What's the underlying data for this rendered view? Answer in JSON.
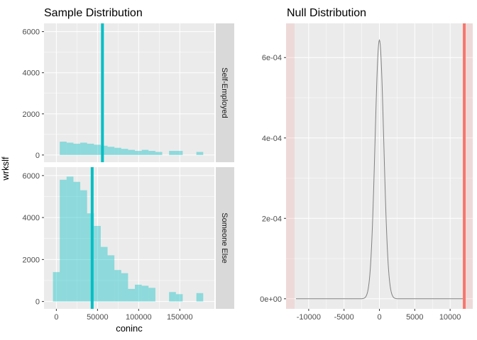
{
  "chart_data": [
    {
      "type": "histogram",
      "title": "Sample Distribution",
      "xlabel": "coninc",
      "ylabel": "wrkslf",
      "xlim": [
        -15000,
        192000
      ],
      "xticks": [
        0,
        50000,
        100000,
        150000
      ],
      "xtick_labels": [
        "0",
        "50000",
        "100000",
        "150000"
      ],
      "ylim": [
        -350,
        6400
      ],
      "yticks": [
        0,
        2000,
        4000,
        6000
      ],
      "ytick_labels": [
        "0",
        "2000",
        "4000",
        "6000"
      ],
      "bin_width": 8300,
      "bin_centers": [
        0,
        8300,
        16600,
        24900,
        33200,
        41500,
        49800,
        58100,
        66400,
        74700,
        83000,
        91300,
        99600,
        107900,
        116200,
        124500,
        132800,
        141100,
        149400,
        157700,
        166000,
        174300,
        182600
      ],
      "bar_color": "#00BFC4",
      "bar_opacity": 0.4,
      "vline_color": "#00BFC4",
      "grid": true,
      "facets": [
        {
          "label": "Self-Employed",
          "values": [
            0,
            650,
            600,
            550,
            600,
            550,
            500,
            450,
            400,
            350,
            300,
            250,
            200,
            250,
            200,
            150,
            0,
            200,
            200,
            0,
            0,
            150,
            0
          ],
          "mean_line": 56000
        },
        {
          "label": "Someone Else",
          "values": [
            1400,
            5800,
            5950,
            5700,
            5300,
            4200,
            3600,
            2600,
            2200,
            1500,
            1350,
            600,
            800,
            750,
            650,
            0,
            0,
            450,
            350,
            0,
            0,
            400,
            0
          ],
          "mean_line": 43500
        }
      ]
    },
    {
      "type": "line",
      "title": "Null Distribution",
      "xlim": [
        -13200,
        13200
      ],
      "xticks": [
        -10000,
        -5000,
        0,
        5000,
        10000
      ],
      "xtick_labels": [
        "-10000",
        "-5000",
        "0",
        "5000",
        "10000"
      ],
      "ylim": [
        -2.5e-05,
        0.000685
      ],
      "yticks": [
        0,
        0.0002,
        0.0004,
        0.0006
      ],
      "ytick_labels": [
        "0e+00",
        "2e-04",
        "4e-04",
        "6e-04"
      ],
      "density_mean": 0,
      "density_sd": 620,
      "curve_from": -11800,
      "curve_to": 11800,
      "line_color": "#808080",
      "observed_stat": 12000,
      "observed_color": "#F8766D",
      "shade_color": "#F8766D",
      "shade_ranges": [
        [
          -13200,
          -12000
        ],
        [
          12000,
          13200
        ]
      ],
      "grid": true
    }
  ],
  "colors": {
    "panel_bg": "#EBEBEB",
    "grid_major": "#FFFFFF",
    "strip_bg": "#D9D9D9"
  }
}
